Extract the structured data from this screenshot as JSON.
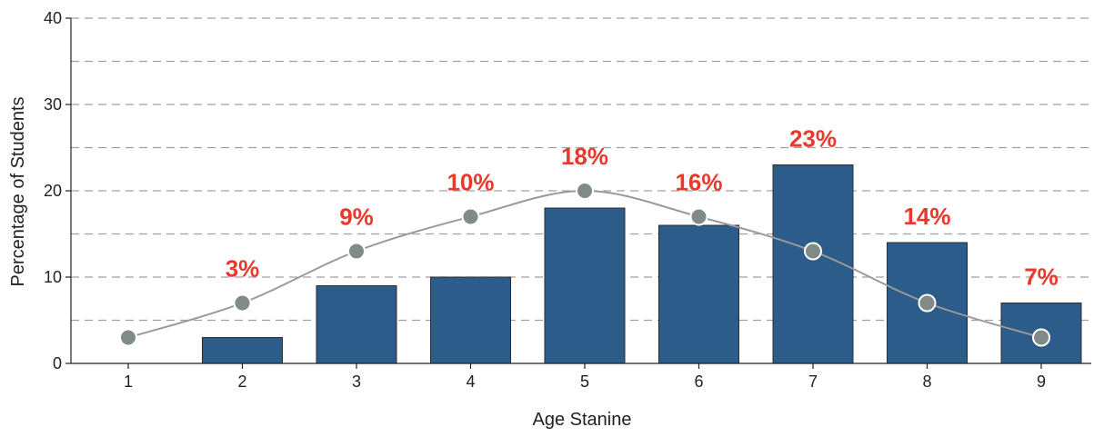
{
  "chart_data": {
    "type": "bar",
    "title": "",
    "xlabel": "Age Stanine",
    "ylabel": "Percentage of Students",
    "categories": [
      "1",
      "2",
      "3",
      "4",
      "5",
      "6",
      "7",
      "8",
      "9"
    ],
    "series": [
      {
        "values": [
          0,
          3,
          9,
          10,
          18,
          16,
          23,
          14,
          7
        ],
        "color": "#2b5c8a"
      }
    ],
    "data_labels": [
      "",
      "3%",
      "9%",
      "10%",
      "18%",
      "16%",
      "23%",
      "14%",
      "7%"
    ],
    "normal_curve": {
      "values": [
        3,
        7,
        13,
        17,
        20,
        17,
        13,
        7,
        3
      ],
      "line_color": "#9a9a9a",
      "marker_color": "#7f8a89"
    },
    "ylim": [
      0,
      40
    ],
    "yticks": [
      0,
      10,
      20,
      30,
      40
    ],
    "grid": true,
    "grid_style": "dashed",
    "label_color": "#e8392b"
  }
}
